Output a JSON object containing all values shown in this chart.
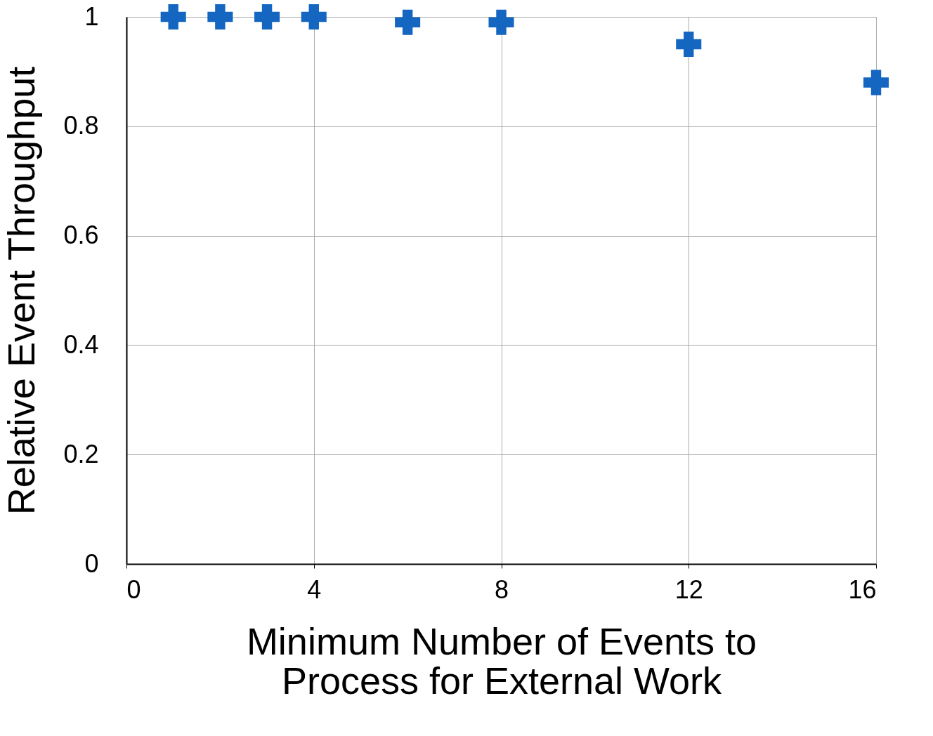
{
  "chart_data": {
    "type": "scatter",
    "xlabel": "Minimum Number of Events to\nProcess for External Work",
    "ylabel": "Relative Event Throughput",
    "x": [
      1,
      2,
      3,
      4,
      6,
      8,
      12,
      16
    ],
    "series": [
      {
        "color": "#1466c0",
        "values": [
          1.0,
          1.0,
          1.0,
          1.0,
          0.99,
          0.99,
          0.95,
          0.88
        ]
      }
    ],
    "xlim": [
      0,
      16
    ],
    "xticks": [
      0,
      4,
      8,
      12,
      16
    ],
    "ylim": [
      0,
      1
    ],
    "yticks": [
      0,
      0.2,
      0.4,
      0.6,
      0.8,
      1
    ],
    "grid": true,
    "marker": "cross",
    "legend": false
  }
}
